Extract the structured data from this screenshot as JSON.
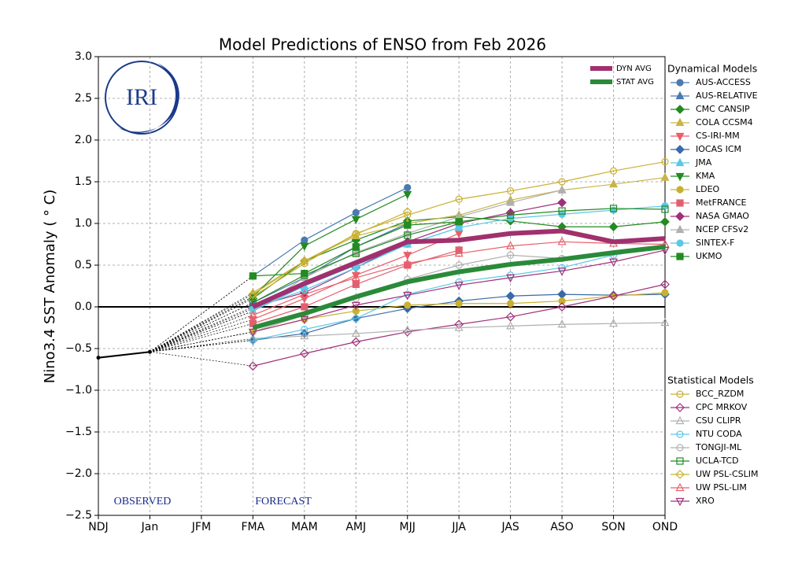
{
  "chart_data": {
    "type": "line",
    "title": "Model Predictions of ENSO from Feb 2026",
    "y_label": "Nino3.4 SST Anomaly ( ° C)",
    "logo_text": "IRI",
    "annotations": [
      "OBSERVED",
      "FORECAST"
    ],
    "categories": [
      "NDJ",
      "Jan",
      "JFM",
      "FMA",
      "MAM",
      "AMJ",
      "MJJ",
      "JJA",
      "JAS",
      "ASO",
      "SON",
      "OND"
    ],
    "ylim": [
      -2.5,
      3.0
    ],
    "yticks": [
      {
        "value": 3.0,
        "label": "3.0"
      },
      {
        "value": 2.5,
        "label": "2.5"
      },
      {
        "value": 2.0,
        "label": "2.0"
      },
      {
        "value": 1.5,
        "label": "1.5"
      },
      {
        "value": 1.0,
        "label": "1.0"
      },
      {
        "value": 0.5,
        "label": "0.5"
      },
      {
        "value": 0.0,
        "label": "0.0"
      },
      {
        "value": -0.5,
        "label": "−0.5"
      },
      {
        "value": -1.0,
        "label": "−1.0"
      },
      {
        "value": -1.5,
        "label": "−1.5"
      },
      {
        "value": -2.0,
        "label": "−2.0"
      },
      {
        "value": -2.5,
        "label": "−2.5"
      }
    ],
    "grid": true,
    "observed": {
      "color": "#000000",
      "values": [
        -0.61,
        -0.54,
        null,
        null,
        null,
        null,
        null,
        null,
        null,
        null,
        null,
        null
      ]
    },
    "legend_groups": [
      "Dynamical Models",
      "Statistical Models"
    ],
    "averages": [
      {
        "name": "DYN AVG",
        "color": "#a0306e",
        "values": [
          null,
          null,
          null,
          0.0,
          0.28,
          0.53,
          0.78,
          0.8,
          0.88,
          0.91,
          0.78,
          0.82
        ]
      },
      {
        "name": "STAT AVG",
        "color": "#2a8a3a",
        "values": [
          null,
          null,
          null,
          -0.25,
          -0.08,
          0.12,
          0.3,
          0.42,
          0.51,
          0.57,
          0.65,
          0.72
        ]
      }
    ],
    "series": [
      {
        "name": "AUS-ACCESS",
        "group": 0,
        "color": "#4a7ab0",
        "marker": "circle",
        "filled": true,
        "values": [
          null,
          null,
          null,
          0.37,
          0.8,
          1.13,
          1.43,
          null,
          null,
          null,
          null,
          null
        ]
      },
      {
        "name": "AUS-RELATIVE",
        "group": 0,
        "color": "#4a7ab0",
        "marker": "triangle-up",
        "filled": true,
        "values": [
          null,
          null,
          null,
          0.05,
          0.35,
          0.72,
          1.0,
          null,
          null,
          null,
          null,
          null
        ]
      },
      {
        "name": "CMC CANSIP",
        "group": 0,
        "color": "#228b22",
        "marker": "diamond",
        "filled": true,
        "values": [
          null,
          null,
          null,
          0.1,
          0.55,
          0.8,
          1.03,
          1.08,
          1.03,
          0.96,
          0.96,
          1.02
        ]
      },
      {
        "name": "COLA CCSM4",
        "group": 0,
        "color": "#c8b44a",
        "marker": "triangle-up",
        "filled": true,
        "values": [
          null,
          null,
          null,
          0.17,
          0.55,
          0.85,
          1.0,
          1.1,
          1.28,
          1.4,
          1.47,
          1.55
        ]
      },
      {
        "name": "CS-IRI-MM",
        "group": 0,
        "color": "#e8606a",
        "marker": "triangle-down",
        "filled": true,
        "values": [
          null,
          null,
          null,
          -0.15,
          0.1,
          0.38,
          0.62,
          0.88,
          null,
          null,
          null,
          null
        ]
      },
      {
        "name": "IOCAS ICM",
        "group": 0,
        "color": "#3a6aa8",
        "marker": "diamond",
        "filled": true,
        "values": [
          null,
          null,
          null,
          -0.4,
          -0.32,
          -0.14,
          -0.02,
          0.07,
          0.13,
          0.15,
          0.14,
          0.15
        ]
      },
      {
        "name": "JMA",
        "group": 0,
        "color": "#5bc8e8",
        "marker": "triangle-up",
        "filled": true,
        "values": [
          null,
          null,
          null,
          -0.05,
          0.25,
          0.5,
          0.75,
          0.95,
          null,
          null,
          null,
          null
        ]
      },
      {
        "name": "KMA",
        "group": 0,
        "color": "#228b22",
        "marker": "triangle-down",
        "filled": true,
        "values": [
          null,
          null,
          null,
          0.12,
          0.73,
          1.05,
          1.35,
          null,
          null,
          null,
          null,
          null
        ]
      },
      {
        "name": "LDEO",
        "group": 0,
        "color": "#c8b030",
        "marker": "circle",
        "filled": true,
        "values": [
          null,
          null,
          null,
          -0.3,
          -0.15,
          -0.05,
          0.02,
          0.04,
          0.04,
          0.07,
          0.13,
          0.17
        ]
      },
      {
        "name": "MetFRANCE",
        "group": 0,
        "color": "#e06070",
        "marker": "square",
        "filled": true,
        "values": [
          null,
          null,
          null,
          -0.2,
          0.0,
          0.27,
          0.5,
          0.68,
          null,
          null,
          null,
          null
        ]
      },
      {
        "name": "NASA GMAO",
        "group": 0,
        "color": "#a0307a",
        "marker": "diamond",
        "filled": true,
        "values": [
          null,
          null,
          null,
          0.0,
          0.17,
          0.47,
          0.78,
          1.0,
          1.13,
          1.25,
          null,
          null
        ]
      },
      {
        "name": "NCEP CFSv2",
        "group": 0,
        "color": "#b0b0b0",
        "marker": "triangle-up",
        "filled": true,
        "values": [
          null,
          null,
          null,
          -0.05,
          0.35,
          0.65,
          0.88,
          1.08,
          1.25,
          1.4,
          null,
          null
        ]
      },
      {
        "name": "SINTEX-F",
        "group": 0,
        "color": "#5bc8e8",
        "marker": "circle",
        "filled": true,
        "values": [
          null,
          null,
          null,
          -0.02,
          0.2,
          0.47,
          0.75,
          0.95,
          1.06,
          1.11,
          1.16,
          1.21
        ]
      },
      {
        "name": "UKMO",
        "group": 0,
        "color": "#228b22",
        "marker": "square",
        "filled": true,
        "values": [
          null,
          null,
          null,
          0.37,
          0.4,
          0.72,
          0.98,
          1.02,
          null,
          null,
          null,
          null
        ]
      },
      {
        "name": "BCC_RZDM",
        "group": 1,
        "color": "#c8b030",
        "marker": "circle",
        "filled": false,
        "values": [
          null,
          null,
          null,
          0.12,
          0.52,
          0.88,
          1.1,
          1.29,
          1.39,
          1.5,
          1.63,
          1.74
        ]
      },
      {
        "name": "CPC MRKOV",
        "group": 1,
        "color": "#a0307a",
        "marker": "diamond",
        "filled": false,
        "values": [
          null,
          null,
          null,
          -0.71,
          -0.56,
          -0.42,
          -0.3,
          -0.21,
          -0.12,
          0.0,
          0.13,
          0.27
        ]
      },
      {
        "name": "CSU CLIPR",
        "group": 1,
        "color": "#b0b0b0",
        "marker": "triangle-up",
        "filled": false,
        "values": [
          null,
          null,
          null,
          -0.38,
          -0.35,
          -0.32,
          -0.28,
          -0.25,
          -0.23,
          -0.21,
          -0.2,
          -0.19
        ]
      },
      {
        "name": "NTU CODA",
        "group": 1,
        "color": "#5bc8e8",
        "marker": "circle",
        "filled": false,
        "values": [
          null,
          null,
          null,
          -0.4,
          -0.27,
          -0.14,
          0.15,
          0.3,
          0.38,
          0.47,
          0.62,
          0.72
        ]
      },
      {
        "name": "TONGJI-ML",
        "group": 1,
        "color": "#b0b0b0",
        "marker": "circle",
        "filled": false,
        "values": [
          null,
          null,
          null,
          -0.3,
          -0.1,
          0.1,
          0.33,
          0.5,
          0.62,
          0.58,
          null,
          null
        ]
      },
      {
        "name": "UCLA-TCD",
        "group": 1,
        "color": "#228b22",
        "marker": "square",
        "filled": false,
        "values": [
          null,
          null,
          null,
          0.05,
          0.38,
          0.64,
          0.86,
          1.02,
          1.1,
          1.15,
          1.18,
          1.17
        ]
      },
      {
        "name": "UW PSL-CSLIM",
        "group": 1,
        "color": "#c8b030",
        "marker": "diamond",
        "filled": false,
        "values": [
          null,
          null,
          null,
          0.15,
          0.55,
          0.87,
          1.14,
          null,
          null,
          null,
          null,
          null
        ]
      },
      {
        "name": "UW PSL-LIM",
        "group": 1,
        "color": "#e8606a",
        "marker": "triangle-up",
        "filled": false,
        "values": [
          null,
          null,
          null,
          -0.1,
          0.15,
          0.35,
          0.52,
          0.64,
          0.73,
          0.78,
          0.76,
          0.75
        ]
      },
      {
        "name": "XRO",
        "group": 1,
        "color": "#a0307a",
        "marker": "triangle-down",
        "filled": false,
        "values": [
          null,
          null,
          null,
          -0.3,
          -0.15,
          0.02,
          0.14,
          0.26,
          0.35,
          0.43,
          0.54,
          0.68
        ]
      }
    ]
  }
}
